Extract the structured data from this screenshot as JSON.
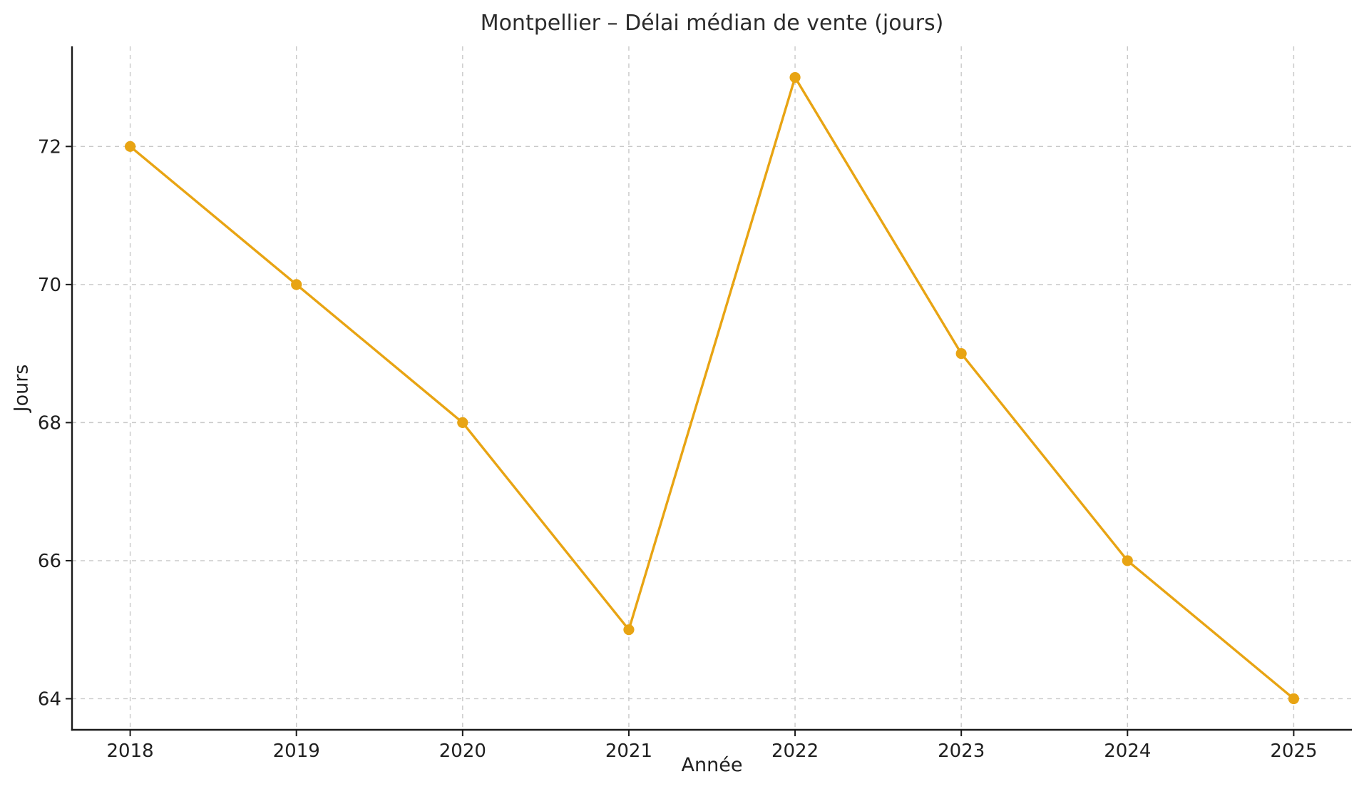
{
  "chart_data": {
    "type": "line",
    "title": "Montpellier – Délai médian de vente (jours)",
    "xlabel": "Année",
    "ylabel": "Jours",
    "x": [
      2018,
      2019,
      2020,
      2021,
      2022,
      2023,
      2024,
      2025
    ],
    "series": [
      {
        "name": "Délai médian de vente (jours)",
        "values": [
          72,
          70,
          68,
          65,
          73,
          69,
          66,
          64
        ]
      }
    ],
    "xticks": [
      2018,
      2019,
      2020,
      2021,
      2022,
      2023,
      2024,
      2025
    ],
    "yticks": [
      64,
      66,
      68,
      70,
      72
    ],
    "xlim": [
      2017.65,
      2025.35
    ],
    "ylim": [
      63.55,
      73.45
    ],
    "grid": true,
    "grid_style": "dashed",
    "legend": false,
    "line_color": "#E8A413",
    "marker": "o",
    "grid_color": "#c9c9c9",
    "axis_color": "#1a1a1a",
    "text_color": "#1f1f1f",
    "background": "#ffffff"
  }
}
